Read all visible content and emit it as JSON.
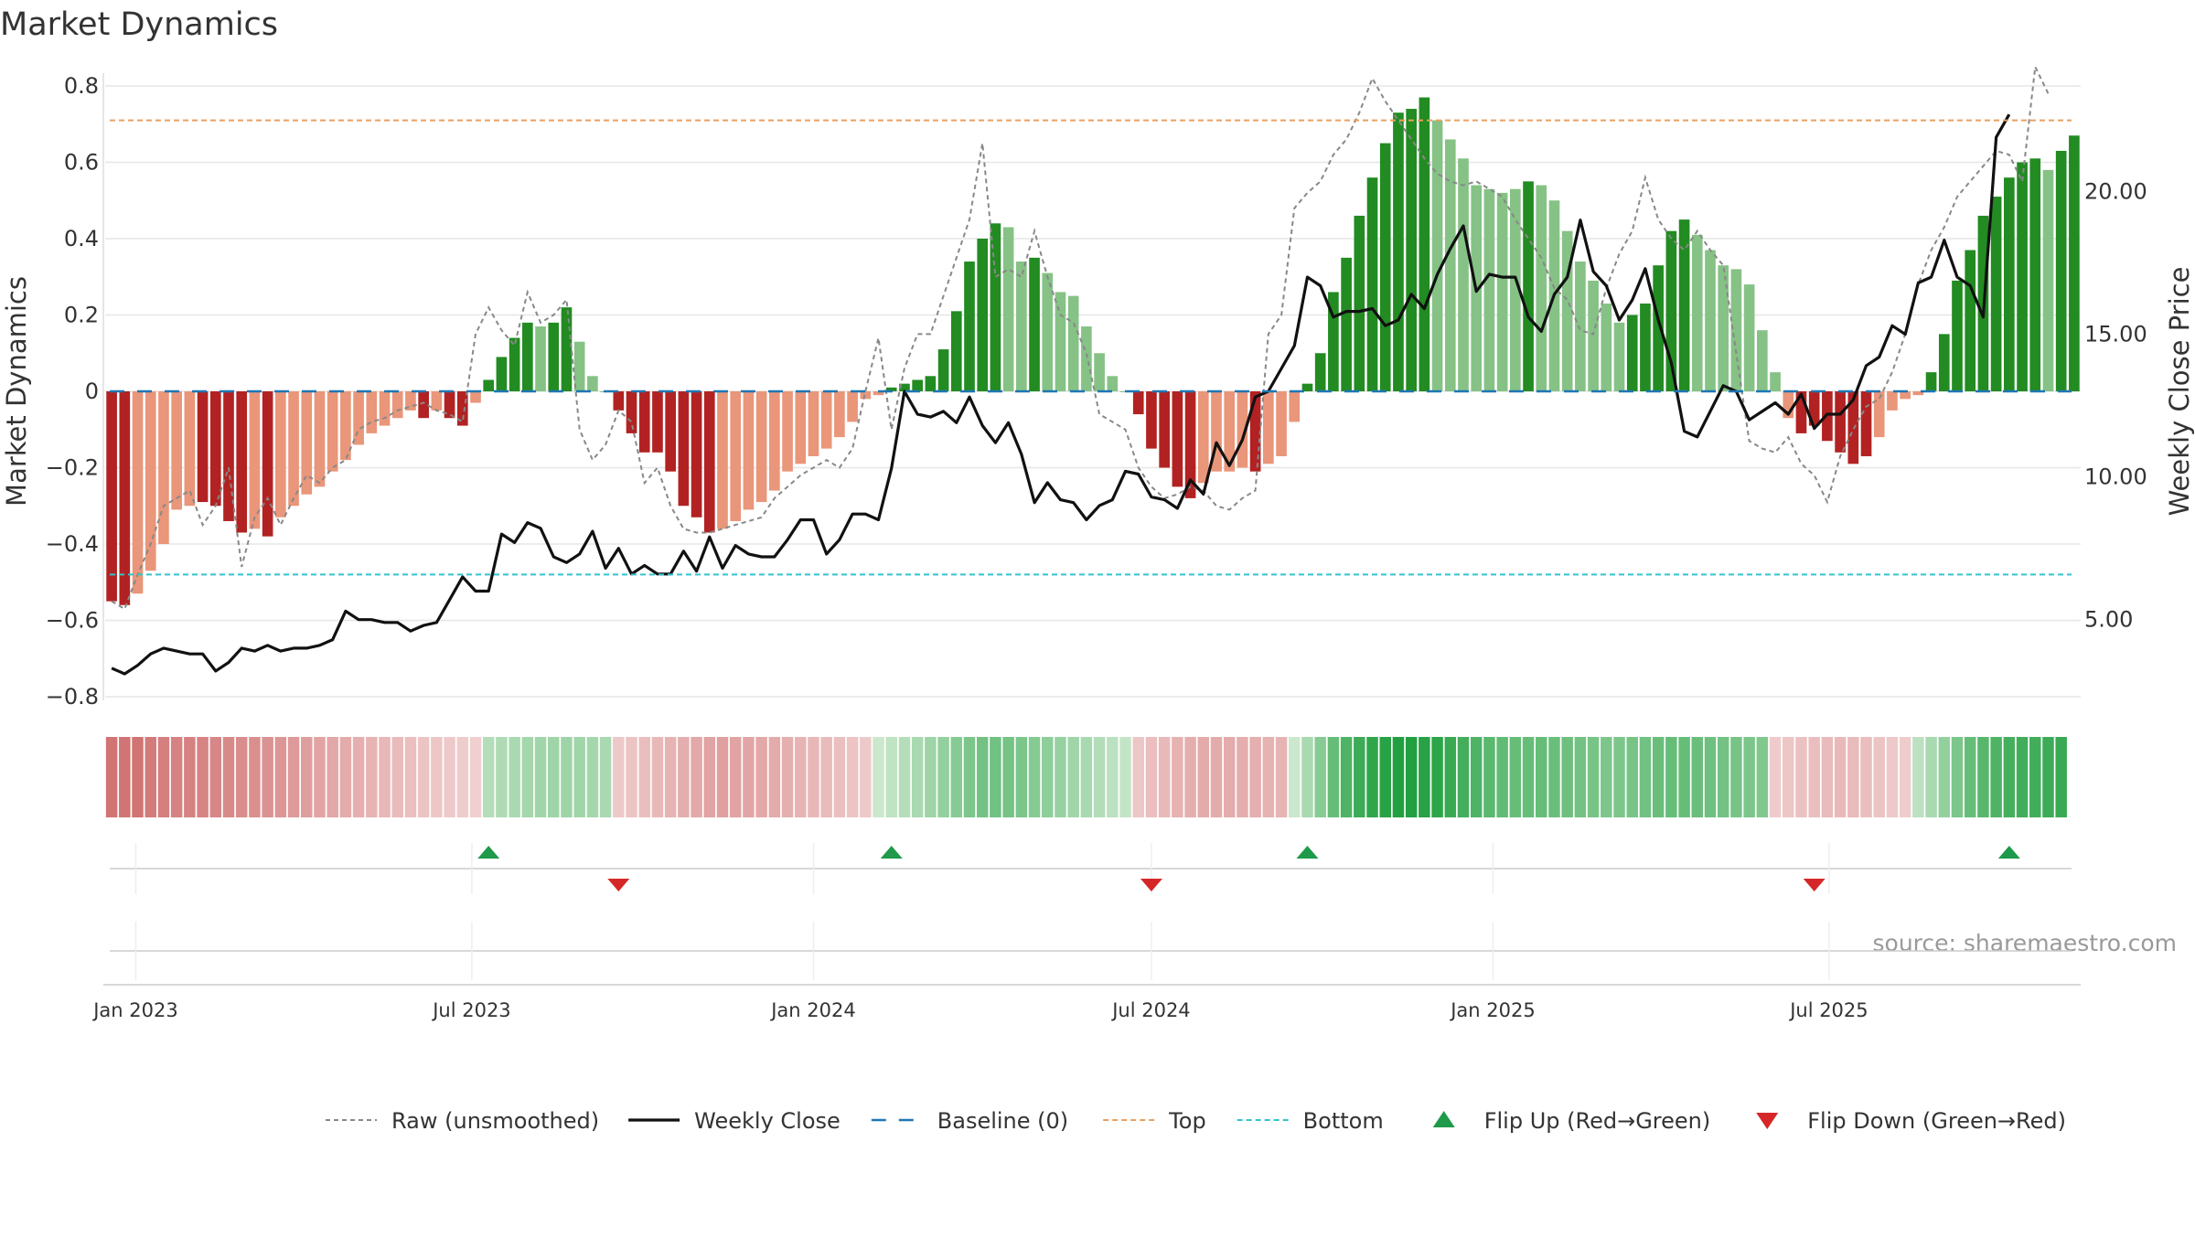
{
  "chart_data": {
    "type": "bar",
    "title": "Market Dynamics",
    "ylabel": "Market Dynamics",
    "y2label": "Weekly Close Price",
    "source": "source: sharemaestro.com",
    "ylim": [
      -0.8,
      0.8
    ],
    "y2lim": [
      2.3,
      23.7
    ],
    "y_ticks": [
      "0.8",
      "0.6",
      "0.4",
      "0.2",
      "0",
      "−0.2",
      "−0.4",
      "−0.6",
      "−0.8"
    ],
    "y_tick_values": [
      0.8,
      0.6,
      0.4,
      0.2,
      0,
      -0.2,
      -0.4,
      -0.6,
      -0.8
    ],
    "y2_ticks": [
      "20.00",
      "15.00",
      "10.00",
      "5.00"
    ],
    "y2_tick_values": [
      20,
      15,
      10,
      5
    ],
    "x_ticks": [
      "Jan 2023",
      "Jul 2023",
      "Jan 2024",
      "Jul 2024",
      "Jan 2025",
      "Jul 2025"
    ],
    "x_tick_dates": [
      "2023-01-01",
      "2023-07-01",
      "2024-01-01",
      "2024-07-01",
      "2025-01-01",
      "2025-07-01"
    ],
    "start_date": "2022-12-19",
    "top_line": 0.71,
    "bottom_line": -0.48,
    "baseline": 0,
    "grid": true,
    "colors": {
      "strong_green": "#228b22",
      "light_green": "#86c286",
      "strong_red": "#b22222",
      "light_red": "#e9967a",
      "raw_line": "#888888",
      "close_line": "#111111",
      "baseline": "#1f77b4",
      "top": "#e8a060",
      "bottom": "#33c4cc",
      "flip_up": "#1e9a4a",
      "flip_down": "#d62728"
    },
    "bars": [
      -0.55,
      -0.56,
      -0.53,
      -0.47,
      -0.4,
      -0.31,
      -0.3,
      -0.29,
      -0.3,
      -0.34,
      -0.37,
      -0.36,
      -0.38,
      -0.33,
      -0.3,
      -0.27,
      -0.25,
      -0.21,
      -0.18,
      -0.14,
      -0.11,
      -0.09,
      -0.07,
      -0.05,
      -0.07,
      -0.05,
      -0.07,
      -0.09,
      -0.03,
      0.03,
      0.09,
      0.14,
      0.18,
      0.17,
      0.18,
      0.22,
      0.13,
      0.04,
      0.0,
      -0.05,
      -0.11,
      -0.16,
      -0.16,
      -0.21,
      -0.3,
      -0.33,
      -0.37,
      -0.36,
      -0.34,
      -0.31,
      -0.29,
      -0.26,
      -0.21,
      -0.19,
      -0.17,
      -0.15,
      -0.12,
      -0.08,
      -0.02,
      -0.01,
      0.01,
      0.02,
      0.03,
      0.04,
      0.11,
      0.21,
      0.34,
      0.4,
      0.44,
      0.43,
      0.34,
      0.35,
      0.31,
      0.26,
      0.25,
      0.17,
      0.1,
      0.04,
      0.0,
      -0.06,
      -0.15,
      -0.2,
      -0.25,
      -0.28,
      -0.24,
      -0.21,
      -0.21,
      -0.2,
      -0.21,
      -0.19,
      -0.17,
      -0.08,
      0.02,
      0.1,
      0.26,
      0.35,
      0.46,
      0.56,
      0.65,
      0.73,
      0.74,
      0.77,
      0.71,
      0.66,
      0.61,
      0.54,
      0.53,
      0.52,
      0.53,
      0.55,
      0.54,
      0.5,
      0.42,
      0.34,
      0.29,
      0.23,
      0.18,
      0.2,
      0.23,
      0.33,
      0.42,
      0.45,
      0.41,
      0.37,
      0.33,
      0.32,
      0.28,
      0.16,
      0.05,
      -0.07,
      -0.11,
      -0.09,
      -0.13,
      -0.16,
      -0.19,
      -0.17,
      -0.12,
      -0.05,
      -0.02,
      -0.01,
      0.05,
      0.15,
      0.29,
      0.37,
      0.46,
      0.51,
      0.56,
      0.6,
      0.61,
      0.58,
      0.63,
      0.67
    ],
    "bar_colors": [
      "dr",
      "dr",
      "lr",
      "lr",
      "lr",
      "lr",
      "lr",
      "dr",
      "dr",
      "dr",
      "dr",
      "lr",
      "dr",
      "lr",
      "lr",
      "lr",
      "lr",
      "lr",
      "lr",
      "lr",
      "lr",
      "lr",
      "lr",
      "lr",
      "dr",
      "lr",
      "dr",
      "dr",
      "lr",
      "dg",
      "dg",
      "dg",
      "dg",
      "lg",
      "dg",
      "dg",
      "lg",
      "lg",
      "lg",
      "dr",
      "dr",
      "dr",
      "dr",
      "dr",
      "dr",
      "dr",
      "dr",
      "lr",
      "lr",
      "lr",
      "lr",
      "lr",
      "lr",
      "lr",
      "lr",
      "lr",
      "lr",
      "lr",
      "lr",
      "lr",
      "dg",
      "dg",
      "dg",
      "dg",
      "dg",
      "dg",
      "dg",
      "dg",
      "dg",
      "lg",
      "lg",
      "dg",
      "lg",
      "lg",
      "lg",
      "lg",
      "lg",
      "lg",
      "lg",
      "dr",
      "dr",
      "dr",
      "dr",
      "dr",
      "lr",
      "lr",
      "lr",
      "lr",
      "dr",
      "lr",
      "lr",
      "lr",
      "dg",
      "dg",
      "dg",
      "dg",
      "dg",
      "dg",
      "dg",
      "dg",
      "dg",
      "dg",
      "lg",
      "lg",
      "lg",
      "lg",
      "lg",
      "lg",
      "lg",
      "dg",
      "lg",
      "lg",
      "lg",
      "lg",
      "lg",
      "lg",
      "lg",
      "dg",
      "dg",
      "dg",
      "dg",
      "dg",
      "lg",
      "lg",
      "lg",
      "lg",
      "lg",
      "lg",
      "lg",
      "lr",
      "dr",
      "dr",
      "dr",
      "dr",
      "dr",
      "dr",
      "lr",
      "lr",
      "lr",
      "lr",
      "dg",
      "dg",
      "dg",
      "dg",
      "dg",
      "dg",
      "dg",
      "dg",
      "dg",
      "lg",
      "dg",
      "dg"
    ],
    "heat_strip": [
      -0.7,
      -0.7,
      -0.7,
      -0.65,
      -0.62,
      -0.6,
      -0.6,
      -0.58,
      -0.56,
      -0.54,
      -0.52,
      -0.5,
      -0.48,
      -0.45,
      -0.42,
      -0.39,
      -0.36,
      -0.33,
      -0.3,
      -0.27,
      -0.24,
      -0.21,
      -0.18,
      -0.15,
      -0.12,
      -0.1,
      -0.08,
      -0.06,
      -0.04,
      0.15,
      0.18,
      0.2,
      0.22,
      0.24,
      0.25,
      0.25,
      0.24,
      0.22,
      0.2,
      -0.08,
      -0.12,
      -0.16,
      -0.2,
      -0.24,
      -0.28,
      -0.32,
      -0.36,
      -0.38,
      -0.36,
      -0.34,
      -0.32,
      -0.3,
      -0.27,
      -0.24,
      -0.21,
      -0.18,
      -0.15,
      -0.12,
      -0.08,
      0.05,
      0.1,
      0.15,
      0.2,
      0.25,
      0.3,
      0.35,
      0.4,
      0.44,
      0.45,
      0.43,
      0.4,
      0.36,
      0.32,
      0.28,
      0.24,
      0.2,
      0.16,
      0.12,
      0.08,
      -0.1,
      -0.15,
      -0.2,
      -0.25,
      -0.28,
      -0.3,
      -0.3,
      -0.29,
      -0.28,
      -0.27,
      -0.25,
      -0.23,
      0.05,
      0.2,
      0.35,
      0.5,
      0.6,
      0.68,
      0.74,
      0.78,
      0.8,
      0.8,
      0.78,
      0.75,
      0.7,
      0.65,
      0.6,
      0.55,
      0.52,
      0.5,
      0.5,
      0.5,
      0.48,
      0.46,
      0.44,
      0.42,
      0.4,
      0.4,
      0.42,
      0.45,
      0.48,
      0.5,
      0.5,
      0.48,
      0.46,
      0.44,
      0.42,
      0.4,
      0.38,
      -0.06,
      -0.1,
      -0.14,
      -0.16,
      -0.18,
      -0.2,
      -0.18,
      -0.16,
      -0.12,
      -0.08,
      -0.06,
      0.12,
      0.2,
      0.3,
      0.4,
      0.5,
      0.56,
      0.6,
      0.64,
      0.66,
      0.66,
      0.68,
      0.7
    ],
    "raw": [
      -0.55,
      -0.57,
      -0.48,
      -0.4,
      -0.3,
      -0.28,
      -0.26,
      -0.35,
      -0.3,
      -0.2,
      -0.46,
      -0.33,
      -0.28,
      -0.35,
      -0.28,
      -0.22,
      -0.24,
      -0.2,
      -0.18,
      -0.1,
      -0.08,
      -0.07,
      -0.05,
      -0.04,
      -0.03,
      -0.05,
      -0.06,
      -0.08,
      0.15,
      0.22,
      0.16,
      0.12,
      0.26,
      0.18,
      0.2,
      0.24,
      -0.1,
      -0.18,
      -0.14,
      -0.05,
      -0.08,
      -0.24,
      -0.2,
      -0.3,
      -0.36,
      -0.37,
      -0.37,
      -0.36,
      -0.35,
      -0.34,
      -0.33,
      -0.28,
      -0.25,
      -0.22,
      -0.2,
      -0.18,
      -0.2,
      -0.15,
      0.0,
      0.14,
      -0.1,
      0.06,
      0.15,
      0.15,
      0.25,
      0.35,
      0.45,
      0.65,
      0.3,
      0.32,
      0.3,
      0.42,
      0.3,
      0.2,
      0.18,
      0.1,
      -0.06,
      -0.08,
      -0.1,
      -0.2,
      -0.25,
      -0.28,
      -0.27,
      -0.25,
      -0.26,
      -0.3,
      -0.31,
      -0.28,
      -0.26,
      0.15,
      0.2,
      0.48,
      0.52,
      0.55,
      0.62,
      0.66,
      0.73,
      0.82,
      0.76,
      0.71,
      0.66,
      0.61,
      0.57,
      0.55,
      0.54,
      0.55,
      0.53,
      0.51,
      0.45,
      0.4,
      0.35,
      0.27,
      0.24,
      0.16,
      0.15,
      0.27,
      0.36,
      0.42,
      0.56,
      0.45,
      0.4,
      0.37,
      0.42,
      0.37,
      0.33,
      0.1,
      -0.13,
      -0.15,
      -0.16,
      -0.12,
      -0.19,
      -0.22,
      -0.29,
      -0.17,
      -0.1,
      -0.04,
      -0.02,
      0.05,
      0.15,
      0.28,
      0.37,
      0.43,
      0.51,
      0.55,
      0.59,
      0.63,
      0.62,
      0.55,
      0.85,
      0.78
    ],
    "close": [
      3.3,
      3.1,
      3.4,
      3.8,
      4.0,
      3.9,
      3.8,
      3.8,
      3.2,
      3.5,
      4.0,
      3.9,
      4.1,
      3.9,
      4.0,
      4.0,
      4.1,
      4.3,
      5.3,
      5.0,
      5.0,
      4.9,
      4.9,
      4.6,
      4.8,
      4.9,
      5.7,
      6.5,
      6.0,
      6.0,
      8.0,
      7.7,
      8.4,
      8.2,
      7.2,
      7.0,
      7.3,
      8.1,
      6.8,
      7.5,
      6.6,
      6.9,
      6.6,
      6.6,
      7.4,
      6.7,
      7.9,
      6.8,
      7.6,
      7.3,
      7.2,
      7.2,
      7.8,
      8.5,
      8.5,
      7.3,
      7.8,
      8.7,
      8.7,
      8.5,
      10.3,
      13.0,
      12.2,
      12.1,
      12.3,
      11.9,
      12.8,
      11.8,
      11.2,
      11.9,
      10.8,
      9.1,
      9.8,
      9.2,
      9.1,
      8.5,
      9.0,
      9.2,
      10.2,
      10.1,
      9.3,
      9.2,
      8.9,
      9.9,
      9.4,
      11.2,
      10.4,
      11.3,
      12.8,
      13.0,
      13.8,
      14.6,
      17.0,
      16.7,
      15.6,
      15.8,
      15.8,
      15.9,
      15.3,
      15.5,
      16.4,
      15.9,
      17.1,
      18.0,
      18.8,
      16.5,
      17.1,
      17.0,
      17.0,
      15.6,
      15.1,
      16.4,
      17.0,
      19.0,
      17.2,
      16.7,
      15.5,
      16.2,
      17.3,
      15.5,
      14.0,
      11.6,
      11.4,
      12.3,
      13.2,
      13.0,
      12.0,
      12.3,
      12.6,
      12.2,
      12.9,
      11.7,
      12.2,
      12.2,
      12.7,
      13.9,
      14.2,
      15.3,
      15.0,
      16.8,
      17.0,
      18.3,
      17.0,
      16.7,
      15.6,
      21.9,
      22.7
    ],
    "flips": [
      {
        "type": "up",
        "index": 29
      },
      {
        "type": "down",
        "index": 39
      },
      {
        "type": "up",
        "index": 60
      },
      {
        "type": "down",
        "index": 80
      },
      {
        "type": "up",
        "index": 92
      },
      {
        "type": "down",
        "index": 131
      },
      {
        "type": "up",
        "index": 146
      }
    ],
    "legend": [
      {
        "label": "Raw (unsmoothed)",
        "kind": "raw"
      },
      {
        "label": "Weekly Close",
        "kind": "close"
      },
      {
        "label": "Baseline (0)",
        "kind": "baseline"
      },
      {
        "label": "Top",
        "kind": "top"
      },
      {
        "label": "Bottom",
        "kind": "bottom"
      },
      {
        "label": "Flip Up (Red→Green)",
        "kind": "flip_up"
      },
      {
        "label": "Flip Down (Green→Red)",
        "kind": "flip_down"
      }
    ]
  }
}
